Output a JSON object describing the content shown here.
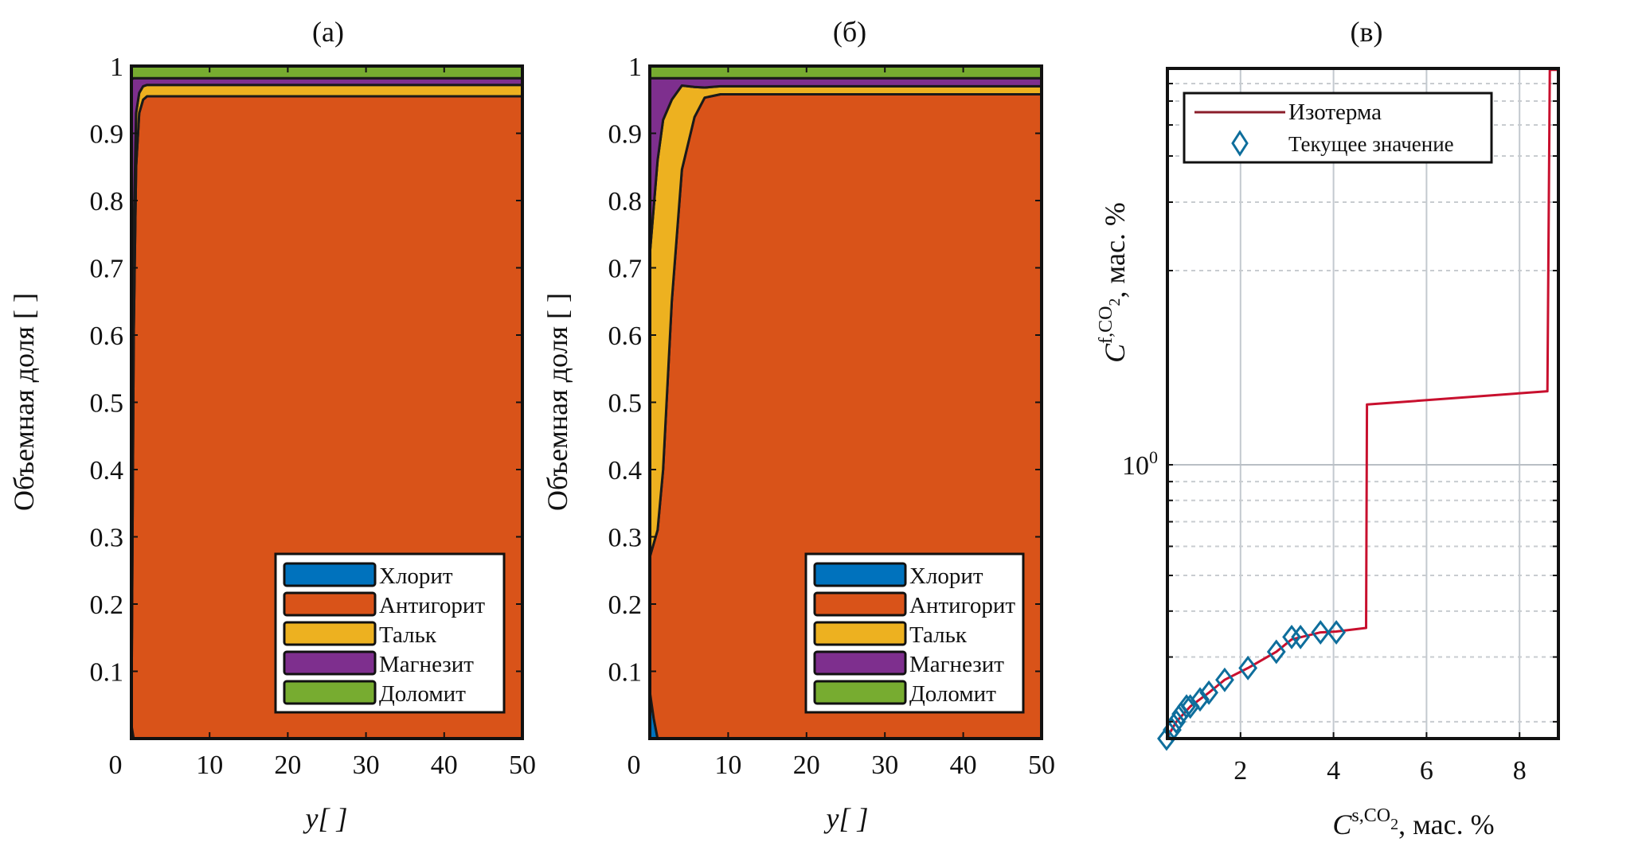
{
  "figure": {
    "panel_titles": [
      "(a)",
      "(б)",
      "(в)"
    ]
  },
  "chart_data": [
    {
      "type": "area",
      "stacked": true,
      "title": "(a)",
      "xlabel": "y[ ]",
      "ylabel": "Объемная доля [ ]",
      "xlim": [
        0,
        50
      ],
      "ylim": [
        0,
        1
      ],
      "xticks": [
        0,
        10,
        20,
        30,
        40,
        50
      ],
      "yticks": [
        0.1,
        0.2,
        0.3,
        0.4,
        0.5,
        0.6,
        0.7,
        0.8,
        0.9,
        1
      ],
      "ytick_labels": [
        "0.1",
        "0.2",
        "0.3",
        "0.4",
        "0.5",
        "0.6",
        "0.7",
        "0.8",
        "0.9",
        "1"
      ],
      "legend_position": "bottom-right",
      "x": [
        0,
        0.3,
        0.6,
        1,
        1.5,
        2,
        3,
        5,
        50
      ],
      "series": [
        {
          "name": "Хлорит",
          "color": "#0072BD",
          "values": [
            0.02,
            0.0,
            0.0,
            0.0,
            0.0,
            0.0,
            0.0,
            0.0,
            0.0
          ]
        },
        {
          "name": "Антигорит",
          "color": "#D95319",
          "values": [
            0.0,
            0.6,
            0.85,
            0.93,
            0.95,
            0.955,
            0.955,
            0.955,
            0.955
          ]
        },
        {
          "name": "Тальк",
          "color": "#EDB120",
          "values": [
            0.0,
            0.15,
            0.08,
            0.03,
            0.02,
            0.017,
            0.017,
            0.017,
            0.017
          ]
        },
        {
          "name": "Магнезит",
          "color": "#7E2F8E",
          "values": [
            0.96,
            0.232,
            0.052,
            0.022,
            0.012,
            0.01,
            0.01,
            0.01,
            0.01
          ]
        },
        {
          "name": "Доломит",
          "color": "#77AC30",
          "values": [
            0.02,
            0.018,
            0.018,
            0.018,
            0.018,
            0.018,
            0.018,
            0.018,
            0.018
          ]
        }
      ]
    },
    {
      "type": "area",
      "stacked": true,
      "title": "(б)",
      "xlabel": "y[ ]",
      "ylabel": "Объемная доля [ ]",
      "xlim": [
        0,
        50
      ],
      "ylim": [
        0,
        1
      ],
      "xticks": [
        0,
        10,
        20,
        30,
        40,
        50
      ],
      "yticks": [
        0.1,
        0.2,
        0.3,
        0.4,
        0.5,
        0.6,
        0.7,
        0.8,
        0.9,
        1
      ],
      "ytick_labels": [
        "0.1",
        "0.2",
        "0.3",
        "0.4",
        "0.5",
        "0.6",
        "0.7",
        "0.8",
        "0.9",
        "1"
      ],
      "legend_position": "bottom-right",
      "x": [
        0,
        0.5,
        1,
        1.7,
        2.8,
        4.1,
        5.7,
        7,
        9,
        12,
        50
      ],
      "series": [
        {
          "name": "Хлорит",
          "color": "#0072BD",
          "values": [
            0.07,
            0.03,
            0.0,
            0.0,
            0.0,
            0.0,
            0.0,
            0.0,
            0.0,
            0.0,
            0.0
          ]
        },
        {
          "name": "Антигорит",
          "color": "#D95319",
          "values": [
            0.2,
            0.26,
            0.31,
            0.4,
            0.65,
            0.846,
            0.924,
            0.953,
            0.958,
            0.958,
            0.958
          ]
        },
        {
          "name": "Тальк",
          "color": "#EDB120",
          "values": [
            0.45,
            0.5,
            0.55,
            0.52,
            0.3,
            0.125,
            0.045,
            0.015,
            0.012,
            0.012,
            0.012
          ]
        },
        {
          "name": "Магнезит",
          "color": "#7E2F8E",
          "values": [
            0.262,
            0.192,
            0.122,
            0.062,
            0.032,
            0.011,
            0.013,
            0.014,
            0.012,
            0.012,
            0.012
          ]
        },
        {
          "name": "Доломит",
          "color": "#77AC30",
          "values": [
            0.018,
            0.018,
            0.018,
            0.018,
            0.018,
            0.018,
            0.018,
            0.018,
            0.018,
            0.018,
            0.018
          ]
        }
      ]
    },
    {
      "type": "line",
      "title": "(в)",
      "xlabel": {
        "main": "C",
        "sup": "s,CO",
        "sub": "2",
        "unit": ", мас. %"
      },
      "ylabel": {
        "main": "C",
        "sup": "f,CO",
        "sub": "2",
        "unit": ", мас. %"
      },
      "xlim": [
        0.43,
        8.84
      ],
      "ylim": [
        0.18,
        8
      ],
      "yscale": "log",
      "grid": true,
      "xticks": [
        2,
        4,
        6,
        8
      ],
      "xtick_labels": [
        "2",
        "4",
        "6",
        "8"
      ],
      "ytick_major": [
        1
      ],
      "ytick_labels": [
        {
          "base": "10",
          "exp": "0"
        }
      ],
      "ytick_minor": [
        0.2,
        0.3,
        0.4,
        0.5,
        0.6,
        0.7,
        0.8,
        0.9,
        2,
        3,
        4,
        5,
        6,
        7
      ],
      "legend_position": "top-left",
      "series": [
        {
          "name": "Изотерма",
          "color": "#C8102E",
          "style": "line",
          "x": [
            0.41,
            0.62,
            0.92,
            1.32,
            1.66,
            2.16,
            2.77,
            3.1,
            3.72,
            4.06,
            4.7,
            4.72,
            8.6,
            8.65,
            8.84
          ],
          "y": [
            0.18,
            0.2,
            0.22,
            0.24,
            0.26,
            0.28,
            0.31,
            0.335,
            0.35,
            0.352,
            0.36,
            1.24,
            1.3,
            7.9,
            7.9
          ]
        },
        {
          "name": "Текущее значение",
          "color": "#0E6E9C",
          "style": "diamond-marker",
          "x": [
            0.41,
            0.53,
            0.62,
            0.72,
            0.84,
            0.92,
            1.13,
            1.32,
            1.66,
            2.16,
            2.77,
            3.1,
            3.29,
            3.72,
            4.06
          ],
          "y": [
            0.18,
            0.19,
            0.2,
            0.21,
            0.22,
            0.22,
            0.23,
            0.24,
            0.26,
            0.28,
            0.31,
            0.34,
            0.34,
            0.35,
            0.35
          ]
        }
      ]
    }
  ]
}
